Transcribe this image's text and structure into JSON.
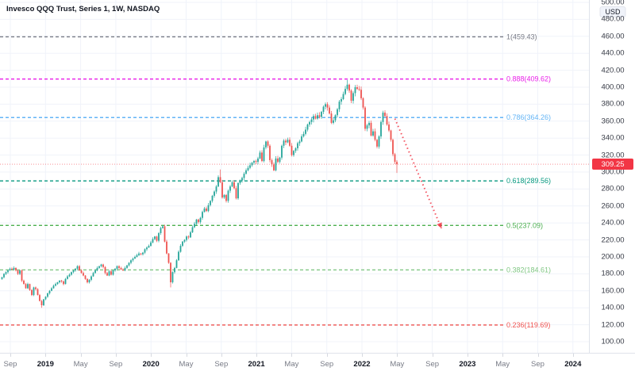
{
  "header": {
    "title": "Invesco QQQ Trust, Series 1, 1W, NASDAQ"
  },
  "price_scale": {
    "currency_label": "USD",
    "ticks": [
      "500.00",
      "480.00",
      "460.00",
      "440.00",
      "420.00",
      "400.00",
      "380.00",
      "360.00",
      "340.00",
      "320.00",
      "300.00",
      "280.00",
      "260.00",
      "240.00",
      "220.00",
      "200.00",
      "180.00",
      "160.00",
      "140.00",
      "120.00",
      "100.00"
    ],
    "tick_values": [
      500,
      480,
      460,
      440,
      420,
      400,
      380,
      360,
      340,
      320,
      300,
      280,
      260,
      240,
      220,
      200,
      180,
      160,
      140,
      120,
      100
    ],
    "last_price_label": "309.25",
    "last_price_value": 309.25
  },
  "time_scale": {
    "ticks": [
      {
        "label": "Sep",
        "major": false
      },
      {
        "label": "2019",
        "major": true
      },
      {
        "label": "May",
        "major": false
      },
      {
        "label": "Sep",
        "major": false
      },
      {
        "label": "2020",
        "major": true
      },
      {
        "label": "May",
        "major": false
      },
      {
        "label": "Sep",
        "major": false
      },
      {
        "label": "2021",
        "major": true
      },
      {
        "label": "May",
        "major": false
      },
      {
        "label": "Sep",
        "major": false
      },
      {
        "label": "2022",
        "major": true
      },
      {
        "label": "May",
        "major": false
      },
      {
        "label": "Sep",
        "major": false
      },
      {
        "label": "2023",
        "major": true
      },
      {
        "label": "May",
        "major": false
      },
      {
        "label": "Sep",
        "major": false
      },
      {
        "label": "2024",
        "major": true
      }
    ]
  },
  "chart_data": {
    "type": "candlestick",
    "title": "Invesco QQQ Trust, Series 1, 1W, NASDAQ",
    "symbol": "QQQ",
    "interval": "1W",
    "exchange": "NASDAQ",
    "unit": "USD",
    "ylim": [
      100,
      500
    ],
    "grid": true,
    "first_open": 174,
    "weekly_closes": [
      176,
      180,
      182,
      184,
      186,
      185,
      187,
      184,
      180,
      184,
      172,
      168,
      163,
      168,
      161,
      155,
      164,
      162,
      155,
      148,
      143,
      150,
      153,
      157,
      160,
      163,
      166,
      168,
      170,
      172,
      171,
      168,
      174,
      177,
      179,
      182,
      184,
      186,
      189,
      184,
      181,
      178,
      174,
      170,
      173,
      177,
      181,
      184,
      187,
      189,
      191,
      188,
      181,
      178,
      183,
      179,
      184,
      186,
      189,
      187,
      185,
      184,
      187,
      190,
      193,
      196,
      198,
      200,
      202,
      204,
      203,
      205,
      209,
      211,
      213,
      217,
      221,
      224,
      219,
      228,
      234,
      236,
      218,
      204,
      193,
      170,
      182,
      187,
      196,
      206,
      213,
      218,
      220,
      224,
      223,
      229,
      235,
      239,
      244,
      241,
      246,
      253,
      257,
      254,
      261,
      266,
      272,
      277,
      283,
      294,
      288,
      270,
      273,
      266,
      278,
      283,
      288,
      281,
      269,
      287,
      290,
      293,
      298,
      302,
      305,
      308,
      311,
      313,
      312,
      316,
      323,
      313,
      329,
      336,
      331,
      314,
      309,
      302,
      316,
      312,
      317,
      331,
      337,
      335,
      338,
      331,
      320,
      325,
      328,
      334,
      336,
      342,
      345,
      350,
      356,
      359,
      362,
      366,
      363,
      367,
      365,
      371,
      377,
      380,
      376,
      369,
      358,
      361,
      367,
      374,
      383,
      386,
      392,
      398,
      403,
      396,
      384,
      393,
      400,
      398,
      397,
      387,
      376,
      351,
      355,
      358,
      343,
      348,
      338,
      330,
      342,
      359,
      370,
      366,
      356,
      349,
      338,
      321,
      312,
      309.25
    ],
    "wick_overrides": {
      "20": {
        "low": 140
      },
      "81": {
        "high": 237
      },
      "85": {
        "low": 164
      },
      "110": {
        "high": 303
      },
      "174": {
        "high": 408.7
      },
      "199": {
        "low": 299
      }
    },
    "fib_levels": [
      {
        "ratio": "1",
        "value": 459.43,
        "label": "1(459.43)",
        "color": "#787b86"
      },
      {
        "ratio": "0.888",
        "value": 409.62,
        "label": "0.888(409.62)",
        "color": "#e91ee9"
      },
      {
        "ratio": "0.786",
        "value": 364.26,
        "label": "0.786(364.26)",
        "color": "#64b5f6"
      },
      {
        "ratio": "0.618",
        "value": 289.56,
        "label": "0.618(289.56)",
        "color": "#089981"
      },
      {
        "ratio": "0.5",
        "value": 237.09,
        "label": "0.5(237.09)",
        "color": "#4caf50"
      },
      {
        "ratio": "0.382",
        "value": 184.61,
        "label": "0.382(184.61)",
        "color": "#81c784"
      },
      {
        "ratio": "0.236",
        "value": 119.69,
        "label": "0.236(119.69)",
        "color": "#ef5350"
      }
    ],
    "projection_arrow": {
      "from": {
        "week": 198,
        "price": 363
      },
      "to": {
        "week": 221.5,
        "price": 233.5
      }
    },
    "colors": {
      "up": "#26a69a",
      "down": "#ef5350",
      "grid": "#f0f3fa",
      "price_line": "#f23645",
      "badge": "#f23645",
      "axis_border": "#e0e3eb"
    }
  }
}
